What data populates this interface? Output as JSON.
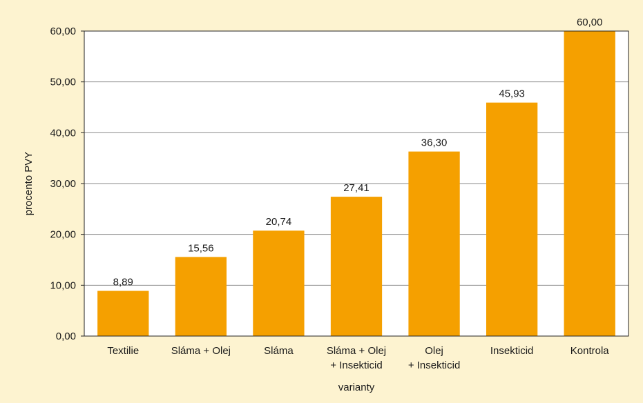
{
  "chart_data": {
    "type": "bar",
    "categories": [
      [
        "Textilie"
      ],
      [
        "Sláma + Olej"
      ],
      [
        "Sláma"
      ],
      [
        "Sláma + Olej",
        "+ Insekticid"
      ],
      [
        "Olej",
        "+ Insekticid"
      ],
      [
        "Insekticid"
      ],
      [
        "Kontrola"
      ]
    ],
    "values": [
      8.89,
      15.56,
      20.74,
      27.41,
      36.3,
      45.93,
      60.0
    ],
    "value_labels": [
      "8,89",
      "15,56",
      "20,74",
      "27,41",
      "36,30",
      "45,93",
      "60,00"
    ],
    "yticks": [
      0,
      10,
      20,
      30,
      40,
      50,
      60
    ],
    "ytick_labels": [
      "0,00",
      "10,00",
      "20,00",
      "30,00",
      "40,00",
      "50,00",
      "60,00"
    ],
    "ylim": [
      0,
      60
    ],
    "xlabel": "varianty",
    "ylabel": "procento PVY",
    "grid": "horizontal",
    "bar_color": "#f5a000",
    "background_color": "#fdf3d0",
    "plot_background_color": "#ffffff"
  }
}
